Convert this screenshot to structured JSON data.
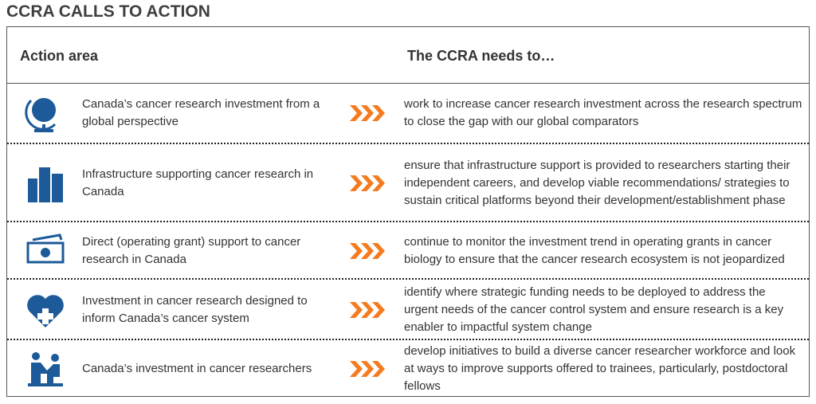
{
  "header": {
    "title": "CCRA CALLS TO ACTION"
  },
  "table": {
    "columns": [
      "Action area",
      "The CCRA needs to…"
    ],
    "rows": [
      [
        "Canada’s cancer research investment from a global perspective",
        "work to increase cancer research investment across the research spectrum to close the gap with our global comparators"
      ],
      [
        "Infrastructure supporting cancer research in Canada",
        "ensure that infrastructure support is provided to researchers starting their independent careers, and develop viable recommendations/ strategies to sustain critical platforms beyond their development/establishment phase"
      ],
      [
        "Direct (operating grant) support to cancer research in Canada",
        "continue to monitor the investment trend in operating grants in cancer biology to ensure that the cancer research ecosystem is not jeopardized"
      ],
      [
        "Investment in cancer research designed to inform Canada’s cancer system",
        "identify where strategic funding needs to be deployed to address the urgent needs of the cancer control system and ensure research is a key enabler to impactful system change"
      ],
      [
        "Canada’s investment in cancer researchers",
        "develop initiatives to build a diverse cancer researcher workforce and look at ways to improve supports offered to trainees, particularly, postdoctoral fellows"
      ]
    ]
  }
}
